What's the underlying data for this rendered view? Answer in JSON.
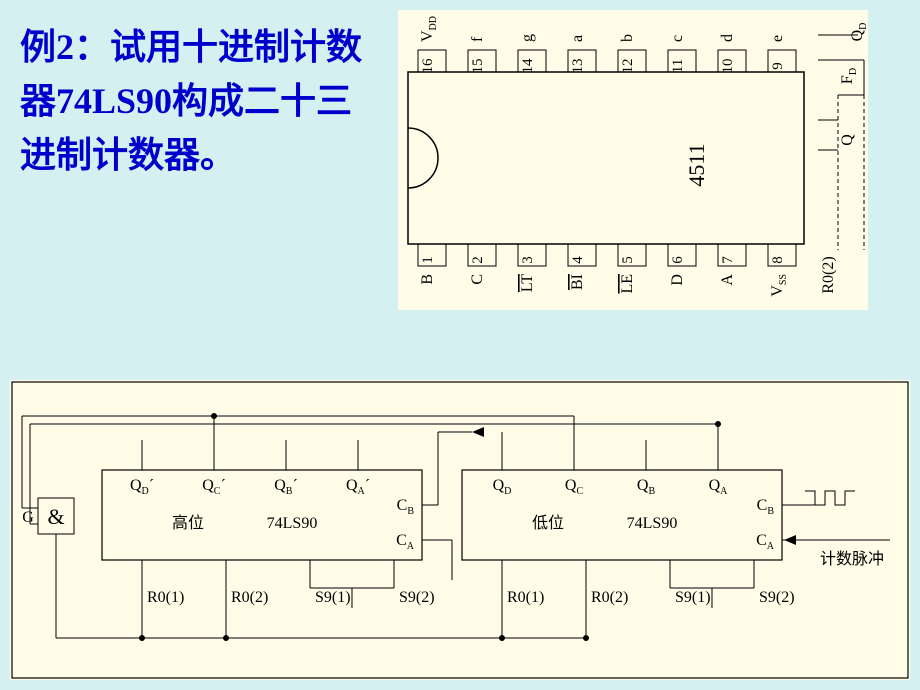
{
  "title_text": "例2：试用十进制计数器74LS90构成二十三进制计数器。",
  "ic4511": {
    "name": "4511",
    "top_pins": [
      {
        "num": "16",
        "label": "V",
        "sub": "DD",
        "bar": false
      },
      {
        "num": "15",
        "label": "f",
        "bar": false
      },
      {
        "num": "14",
        "label": "g",
        "bar": false
      },
      {
        "num": "13",
        "label": "a",
        "bar": false
      },
      {
        "num": "12",
        "label": "b",
        "bar": false
      },
      {
        "num": "11",
        "label": "c",
        "bar": false
      },
      {
        "num": "10",
        "label": "d",
        "bar": false
      },
      {
        "num": "9",
        "label": "e",
        "bar": false
      }
    ],
    "bottom_pins": [
      {
        "num": "1",
        "label": "B",
        "bar": false
      },
      {
        "num": "2",
        "label": "C",
        "bar": false
      },
      {
        "num": "3",
        "label": "LT",
        "bar": true
      },
      {
        "num": "4",
        "label": "BI",
        "bar": true
      },
      {
        "num": "5",
        "label": "LE",
        "bar": true
      },
      {
        "num": "6",
        "label": "D",
        "bar": false
      },
      {
        "num": "7",
        "label": "A",
        "bar": false
      },
      {
        "num": "8",
        "label": "V",
        "sub": "SS",
        "bar": false
      }
    ],
    "side_labels": {
      "top": "Q",
      "top_sub": "D",
      "mid": "F",
      "mid_sub": "D",
      "q": "Q",
      "r": "R0(2)"
    }
  },
  "circuit": {
    "gate_label": "G",
    "and_symbol": "&",
    "chip_name": "74LS90",
    "high_label": "高位",
    "low_label": "低位",
    "clock_label": "计数脉冲",
    "outputs_high": [
      "Q_D´",
      "Q_C´",
      "Q_B´",
      "Q_A´"
    ],
    "outputs_low": [
      "Q_D",
      "Q_C",
      "Q_B",
      "Q_A"
    ],
    "cb": "C_B",
    "ca": "C_A",
    "resets": [
      "R0(1)",
      "R0(2)",
      "S9(1)",
      "S9(2)"
    ]
  },
  "colors": {
    "bg": "#d4f0f0",
    "panel": "#fffde8",
    "line": "#000000",
    "title": "#0000cc"
  }
}
